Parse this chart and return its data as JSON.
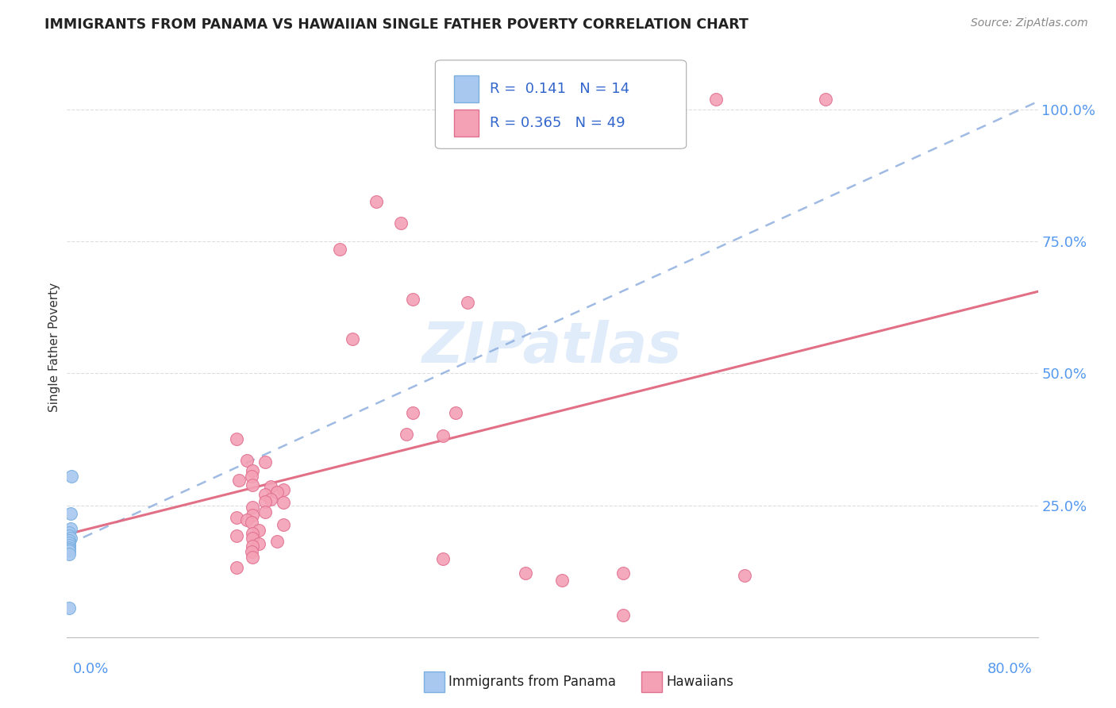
{
  "title": "IMMIGRANTS FROM PANAMA VS HAWAIIAN SINGLE FATHER POVERTY CORRELATION CHART",
  "source": "Source: ZipAtlas.com",
  "ylabel": "Single Father Poverty",
  "legend_blue_r": "0.141",
  "legend_blue_n": "14",
  "legend_pink_r": "0.365",
  "legend_pink_n": "49",
  "legend_blue_label": "Immigrants from Panama",
  "legend_pink_label": "Hawaiians",
  "blue_color": "#a8c8f0",
  "blue_edge_color": "#7ab0e0",
  "pink_color": "#f4a0b5",
  "pink_edge_color": "#e07090",
  "blue_line_color": "#88aadd",
  "pink_line_color": "#e06880",
  "grid_color": "#dddddd",
  "right_tick_color": "#5599ee",
  "title_color": "#222222",
  "source_color": "#888888",
  "watermark_color": "#cce0f5",
  "blue_scatter": [
    [
      0.004,
      0.305
    ],
    [
      0.003,
      0.235
    ],
    [
      0.003,
      0.205
    ],
    [
      0.002,
      0.198
    ],
    [
      0.002,
      0.192
    ],
    [
      0.003,
      0.188
    ],
    [
      0.002,
      0.183
    ],
    [
      0.002,
      0.178
    ],
    [
      0.002,
      0.174
    ],
    [
      0.002,
      0.17
    ],
    [
      0.002,
      0.166
    ],
    [
      0.002,
      0.163
    ],
    [
      0.002,
      0.158
    ],
    [
      0.002,
      0.055
    ]
  ],
  "pink_scatter": [
    [
      0.625,
      1.02
    ],
    [
      0.535,
      1.02
    ],
    [
      0.255,
      0.825
    ],
    [
      0.275,
      0.785
    ],
    [
      0.225,
      0.735
    ],
    [
      0.285,
      0.64
    ],
    [
      0.33,
      0.635
    ],
    [
      0.235,
      0.565
    ],
    [
      0.285,
      0.425
    ],
    [
      0.32,
      0.425
    ],
    [
      0.28,
      0.385
    ],
    [
      0.31,
      0.382
    ],
    [
      0.14,
      0.375
    ],
    [
      0.148,
      0.335
    ],
    [
      0.163,
      0.332
    ],
    [
      0.153,
      0.315
    ],
    [
      0.152,
      0.305
    ],
    [
      0.142,
      0.298
    ],
    [
      0.153,
      0.288
    ],
    [
      0.168,
      0.285
    ],
    [
      0.178,
      0.28
    ],
    [
      0.173,
      0.275
    ],
    [
      0.163,
      0.27
    ],
    [
      0.168,
      0.262
    ],
    [
      0.163,
      0.257
    ],
    [
      0.178,
      0.256
    ],
    [
      0.153,
      0.247
    ],
    [
      0.163,
      0.237
    ],
    [
      0.153,
      0.232
    ],
    [
      0.14,
      0.227
    ],
    [
      0.148,
      0.222
    ],
    [
      0.152,
      0.218
    ],
    [
      0.178,
      0.213
    ],
    [
      0.158,
      0.202
    ],
    [
      0.153,
      0.197
    ],
    [
      0.14,
      0.192
    ],
    [
      0.153,
      0.187
    ],
    [
      0.173,
      0.182
    ],
    [
      0.158,
      0.177
    ],
    [
      0.153,
      0.172
    ],
    [
      0.152,
      0.162
    ],
    [
      0.153,
      0.152
    ],
    [
      0.31,
      0.148
    ],
    [
      0.14,
      0.132
    ],
    [
      0.378,
      0.122
    ],
    [
      0.458,
      0.122
    ],
    [
      0.558,
      0.117
    ],
    [
      0.408,
      0.108
    ],
    [
      0.458,
      0.042
    ]
  ],
  "blue_line": [
    0.0,
    0.8,
    0.175,
    1.015
  ],
  "pink_line": [
    0.0,
    0.8,
    0.195,
    0.655
  ],
  "xlim": [
    0.0,
    0.8
  ],
  "ylim": [
    0.0,
    1.1
  ],
  "yticks": [
    0.25,
    0.5,
    0.75,
    1.0
  ],
  "ytick_labels": [
    "25.0%",
    "50.0%",
    "75.0%",
    "100.0%"
  ],
  "marker_size": 130
}
